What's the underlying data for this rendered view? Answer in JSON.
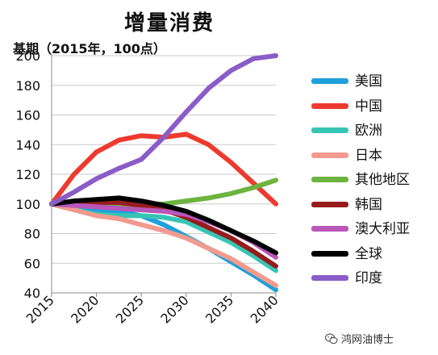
{
  "chart_data": {
    "type": "line",
    "title": "增量消费",
    "ylabel": "基期（2015年，100点）",
    "xlabel": "",
    "xlim": [
      2015,
      2040
    ],
    "ylim": [
      40,
      200
    ],
    "x_ticks": [
      "2015",
      "2020",
      "2025",
      "2030",
      "2035",
      "2040"
    ],
    "y_ticks": [
      "40",
      "60",
      "80",
      "100",
      "120",
      "140",
      "160",
      "180",
      "200"
    ],
    "grid": "horizontal",
    "legend_position": "right",
    "x": [
      2015,
      2017.5,
      2020,
      2022.5,
      2025,
      2027.5,
      2030,
      2032.5,
      2035,
      2037.5,
      2040
    ],
    "series": [
      {
        "name": "美国",
        "color": "#1fa0dc",
        "values": [
          100,
          98,
          96,
          95,
          92,
          86,
          78,
          70,
          61,
          52,
          42
        ]
      },
      {
        "name": "中国",
        "color": "#ee3a2e",
        "values": [
          100,
          120,
          135,
          143,
          146,
          145,
          147,
          140,
          128,
          114,
          100
        ]
      },
      {
        "name": "欧洲",
        "color": "#37c5b3",
        "values": [
          100,
          96,
          93,
          92,
          92,
          91,
          88,
          81,
          74,
          65,
          55
        ]
      },
      {
        "name": "日本",
        "color": "#f29a8e",
        "values": [
          100,
          96,
          92,
          90,
          86,
          82,
          77,
          70,
          63,
          54,
          45
        ]
      },
      {
        "name": "其他地区",
        "color": "#6db33f",
        "values": [
          100,
          100,
          99,
          99,
          99,
          100,
          102,
          104,
          107,
          111,
          116
        ]
      },
      {
        "name": "韩国",
        "color": "#961c1c",
        "values": [
          100,
          100,
          101,
          101,
          99,
          96,
          91,
          84,
          77,
          68,
          58
        ]
      },
      {
        "name": "澳大利亚",
        "color": "#b857b8",
        "values": [
          100,
          99,
          98,
          97,
          96,
          95,
          93,
          88,
          82,
          74,
          64
        ]
      },
      {
        "name": "全球",
        "color": "#000000",
        "values": [
          100,
          102,
          103,
          104,
          102,
          99,
          95,
          89,
          82,
          75,
          67
        ]
      },
      {
        "name": "印度",
        "color": "#8a5cc7",
        "values": [
          100,
          108,
          117,
          124,
          130,
          145,
          162,
          178,
          190,
          198,
          200
        ]
      }
    ]
  },
  "watermark": {
    "text": "鸿网油博士",
    "icon": "wechat-icon"
  }
}
